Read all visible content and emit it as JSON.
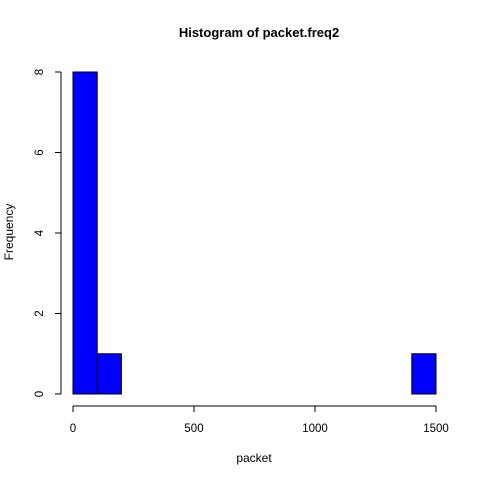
{
  "chart_data": {
    "type": "bar",
    "title": "Histogram of packet.freq2",
    "xlabel": "packet",
    "ylabel": "Frequency",
    "bins": [
      {
        "start": 0,
        "end": 100,
        "count": 8
      },
      {
        "start": 100,
        "end": 200,
        "count": 1
      },
      {
        "start": 200,
        "end": 300,
        "count": 0
      },
      {
        "start": 300,
        "end": 400,
        "count": 0
      },
      {
        "start": 400,
        "end": 500,
        "count": 0
      },
      {
        "start": 500,
        "end": 600,
        "count": 0
      },
      {
        "start": 600,
        "end": 700,
        "count": 0
      },
      {
        "start": 700,
        "end": 800,
        "count": 0
      },
      {
        "start": 800,
        "end": 900,
        "count": 0
      },
      {
        "start": 900,
        "end": 1000,
        "count": 0
      },
      {
        "start": 1000,
        "end": 1100,
        "count": 0
      },
      {
        "start": 1100,
        "end": 1200,
        "count": 0
      },
      {
        "start": 1200,
        "end": 1300,
        "count": 0
      },
      {
        "start": 1300,
        "end": 1400,
        "count": 0
      },
      {
        "start": 1400,
        "end": 1500,
        "count": 1
      }
    ],
    "xticks": [
      "0",
      "500",
      "1000",
      "1500"
    ],
    "yticks": [
      "0",
      "2",
      "4",
      "6",
      "8"
    ],
    "xlim": [
      0,
      1500
    ],
    "ylim": [
      0,
      8
    ],
    "bar_color": "#0000ff",
    "bar_border_color": "#000000",
    "grid": false,
    "legend": "none"
  }
}
